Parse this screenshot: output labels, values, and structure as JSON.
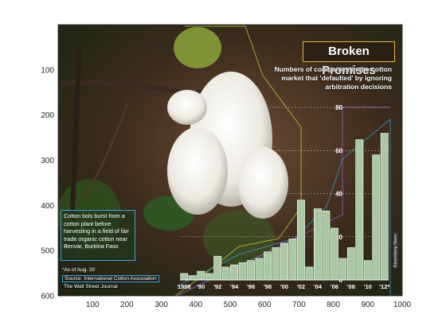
{
  "figure": {
    "x_ticks": [
      "100",
      "200",
      "300",
      "400",
      "500",
      "600",
      "700",
      "800",
      "900",
      "1000"
    ],
    "y_ticks": [
      "100",
      "200",
      "300",
      "400",
      "500",
      "600"
    ]
  },
  "graphic": {
    "title": "Broken Promises",
    "subtitle": "Numbers of companies in the cotton market that 'defaulted' by ignoring arbitration decisions",
    "caption": "Cotton bols burst from a cotton plant before harvesting in a field of fair trade organic cotton near Benvar, Burkina Faso",
    "footnote": "*As of Aug. 20",
    "source": "Source: International Cotton Association",
    "publication": "The Wall Street Journal",
    "photo_credit": "Bloomberg News"
  },
  "chart_data": {
    "type": "bar",
    "title": "Broken Promises",
    "xlabel": "",
    "ylabel": "",
    "ylim": [
      0,
      80
    ],
    "y_tick_labels": [
      "0",
      "20",
      "40",
      "60",
      "80"
    ],
    "x_tick_labels": [
      "1988",
      "'90",
      "'92",
      "'94",
      "'96",
      "'98",
      "'00",
      "'02",
      "'04",
      "'06",
      "'08",
      "'10",
      "'12*"
    ],
    "categories": [
      "1988",
      "1989",
      "1990",
      "1991",
      "1992",
      "1993",
      "1994",
      "1995",
      "1996",
      "1997",
      "1998",
      "1999",
      "2000",
      "2001",
      "2002",
      "2003",
      "2004",
      "2005",
      "2006",
      "2007",
      "2008",
      "2009",
      "2010",
      "2011",
      "2012"
    ],
    "values": [
      3,
      2,
      4,
      3,
      11,
      6,
      7,
      8,
      9,
      10,
      13,
      15,
      17,
      19,
      37,
      6,
      33,
      32,
      24,
      10,
      15,
      65,
      9,
      58,
      68
    ]
  }
}
